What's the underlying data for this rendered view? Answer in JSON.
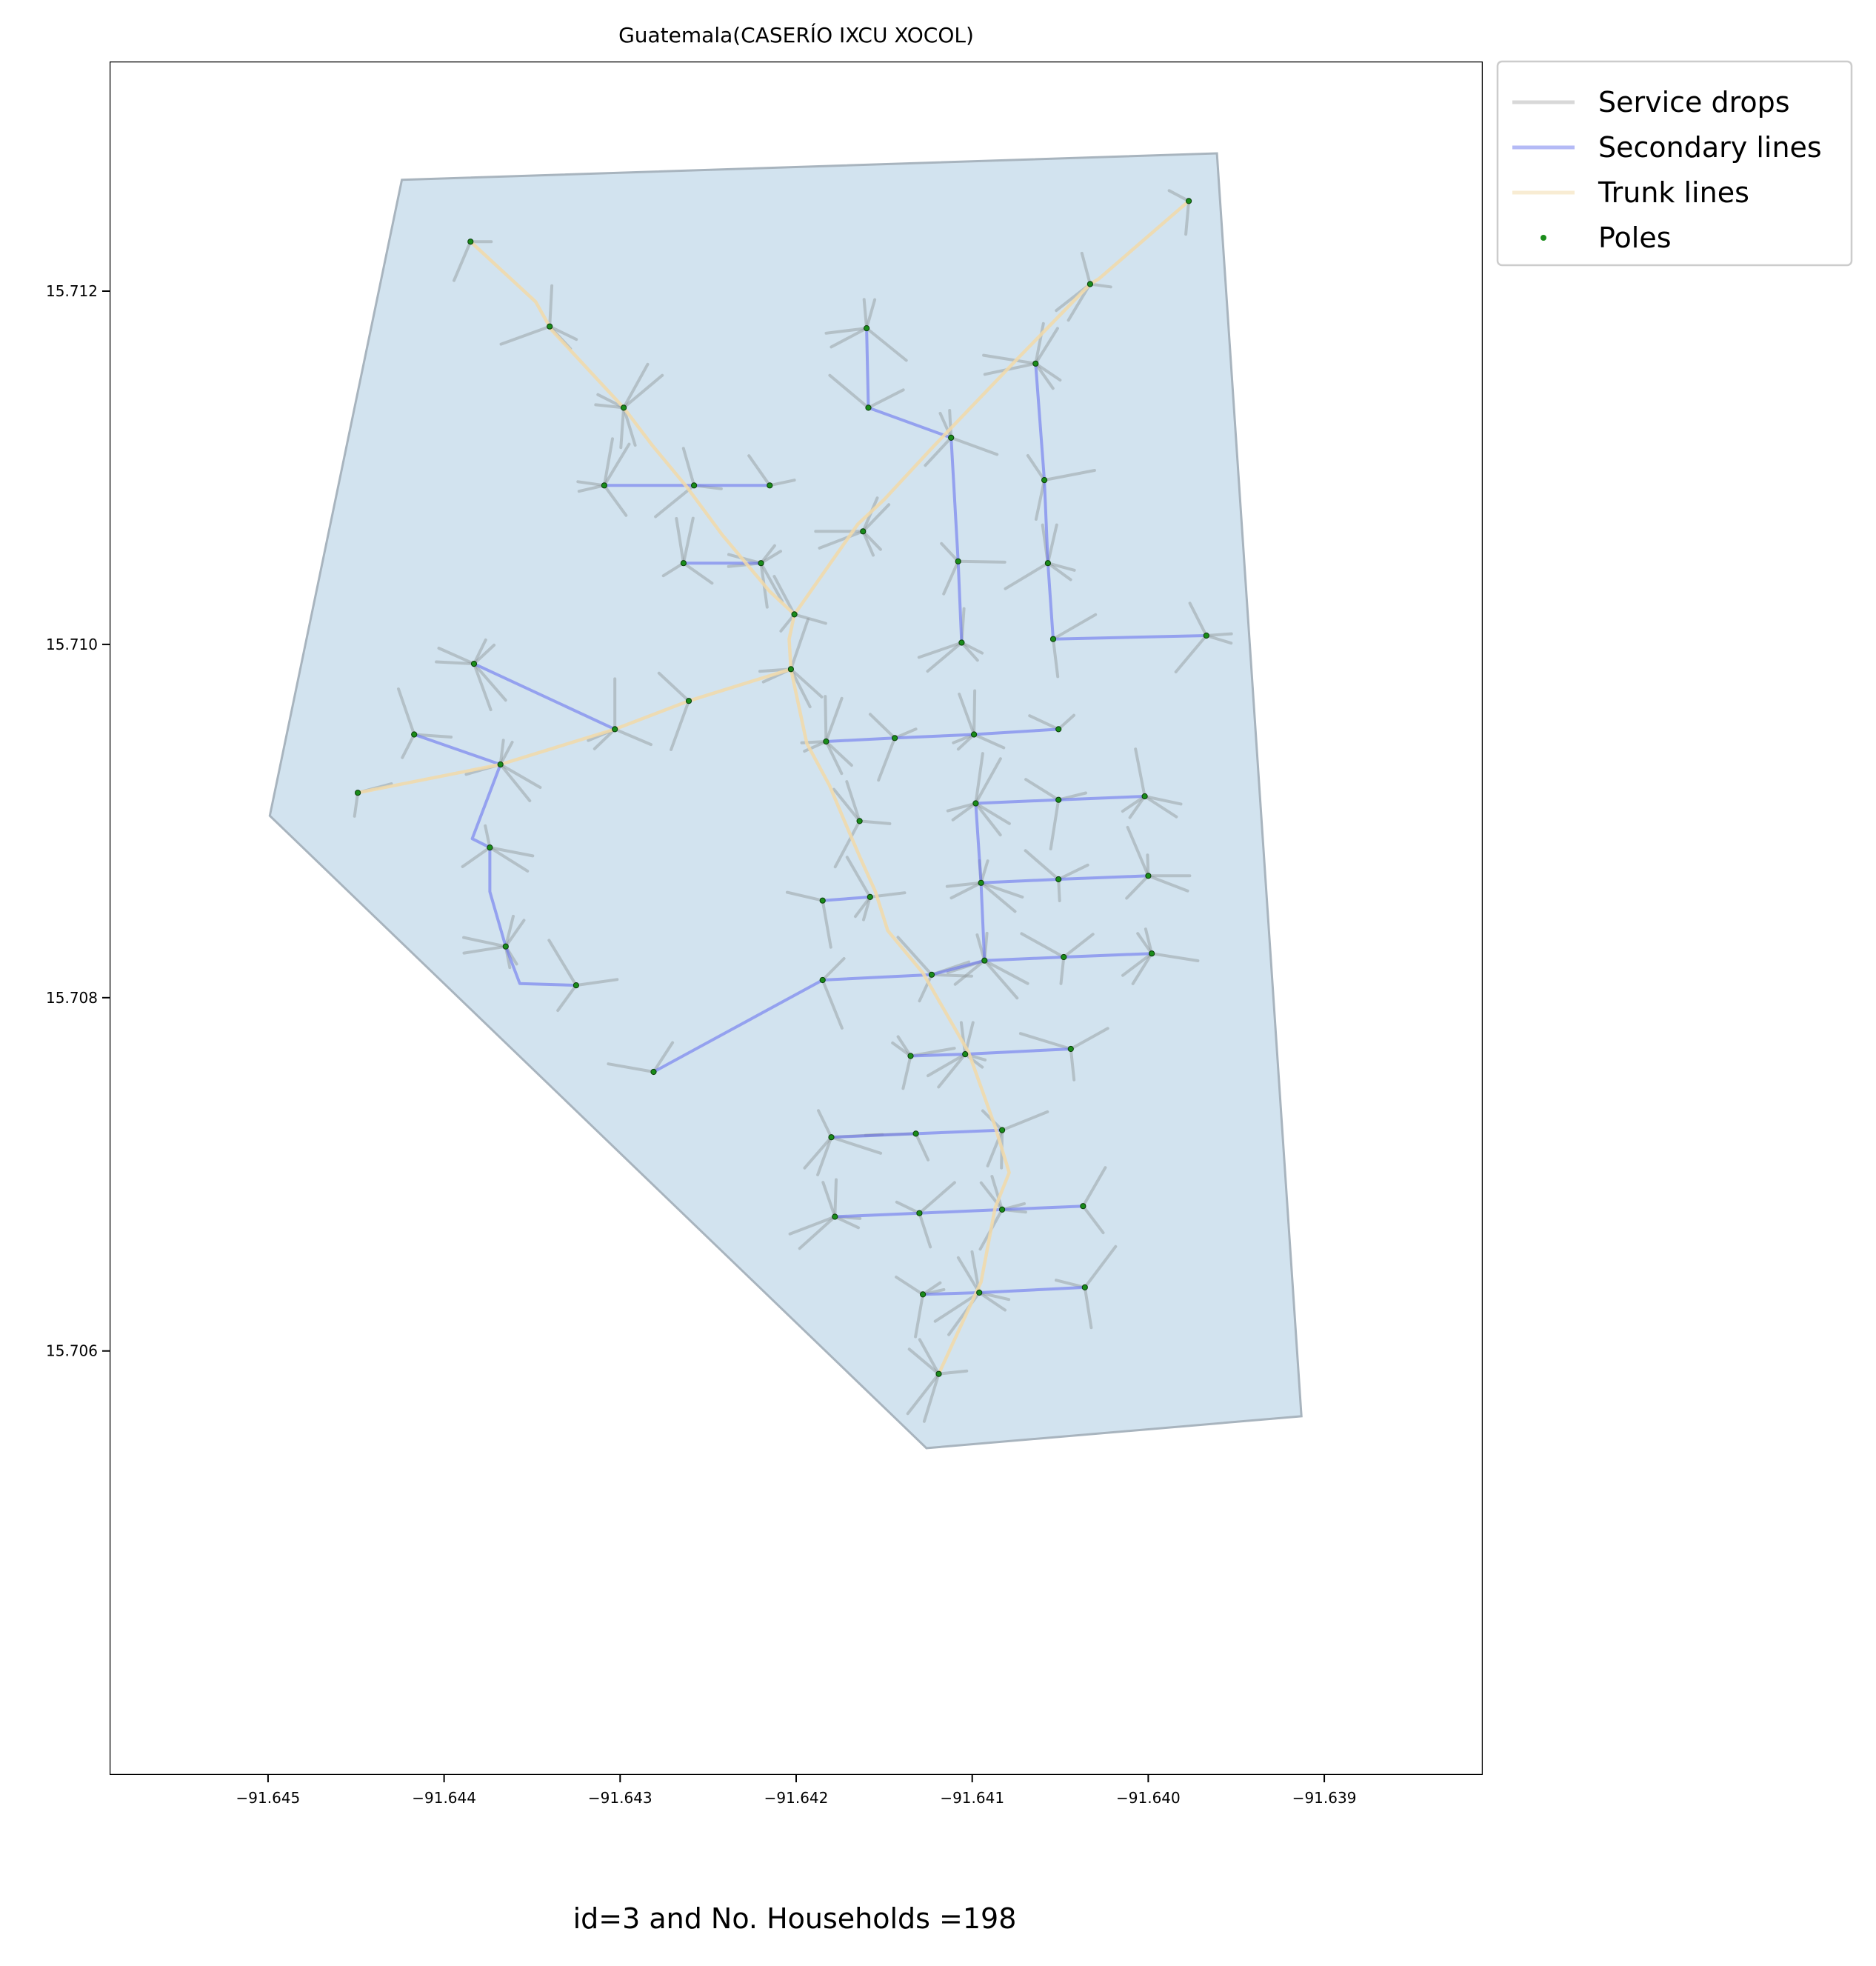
{
  "chart_data": {
    "type": "map",
    "title": "Guatemala(CASERÍO IXCU XOCOL)",
    "caption": "id=3 and No. Households =198",
    "xlim": [
      -91.6459,
      -91.6381
    ],
    "ylim": [
      15.7036,
      15.7133
    ],
    "x_ticks": [
      -91.645,
      -91.644,
      -91.643,
      -91.642,
      -91.641,
      -91.64,
      -91.639
    ],
    "x_tick_labels": [
      "−91.645",
      "−91.644",
      "−91.643",
      "−91.642",
      "−91.641",
      "−91.640",
      "−91.639"
    ],
    "y_ticks": [
      15.706,
      15.708,
      15.71,
      15.712
    ],
    "y_tick_labels": [
      "15.706",
      "15.708",
      "15.710",
      "15.712"
    ],
    "grid": false,
    "legend_position": "outside-top-right",
    "colors": {
      "area_fill": "#d2e3ef",
      "area_edge": "#a8b4be",
      "service_drops": "#c8c8c8",
      "service_drops_drawn": "#8f9497",
      "secondary_lines": "#6a75ee",
      "trunk_lines": "#f2d9a8",
      "poles": "#1a8c1a"
    },
    "legend": [
      {
        "label": "Service drops",
        "kind": "line",
        "color_key": "service_drops"
      },
      {
        "label": "Secondary lines",
        "kind": "line",
        "color_key": "secondary_lines"
      },
      {
        "label": "Trunk lines",
        "kind": "line",
        "color_key": "trunk_lines"
      },
      {
        "label": "Poles",
        "kind": "point",
        "color_key": "poles"
      }
    ],
    "boundary": [
      [
        -91.64424,
        15.71263
      ],
      [
        -91.63961,
        15.71278
      ],
      [
        -91.63913,
        15.70563
      ],
      [
        -91.64126,
        15.70545
      ],
      [
        -91.64499,
        15.70903
      ]
    ],
    "trunk_lines": [
      [
        [
          -91.64385,
          15.71228
        ],
        [
          -91.64348,
          15.71194
        ],
        [
          -91.64339,
          15.71178
        ],
        [
          -91.64325,
          15.71163
        ],
        [
          -91.64298,
          15.71134
        ],
        [
          -91.64282,
          15.71113
        ],
        [
          -91.64262,
          15.71089
        ],
        [
          -91.64242,
          15.71062
        ],
        [
          -91.64215,
          15.7103
        ],
        [
          -91.64201,
          15.71017
        ]
      ],
      [
        [
          -91.63977,
          15.71251
        ],
        [
          -91.64028,
          15.71207
        ],
        [
          -91.64033,
          15.71204
        ],
        [
          -91.64074,
          15.71162
        ],
        [
          -91.64123,
          15.71111
        ],
        [
          -91.6415,
          15.71082
        ],
        [
          -91.64165,
          15.71068
        ],
        [
          -91.64201,
          15.71017
        ]
      ],
      [
        [
          -91.64201,
          15.71017
        ],
        [
          -91.64204,
          15.71003
        ],
        [
          -91.64203,
          15.70986
        ]
      ],
      [
        [
          -91.64261,
          15.70968
        ],
        [
          -91.64203,
          15.70986
        ],
        [
          -91.64194,
          15.70944
        ],
        [
          -91.64181,
          15.7092
        ],
        [
          -91.64173,
          15.70901
        ],
        [
          -91.64164,
          15.7088
        ],
        [
          -91.64155,
          15.7086
        ],
        [
          -91.64148,
          15.70838
        ],
        [
          -91.64128,
          15.70814
        ],
        [
          -91.64102,
          15.70769
        ],
        [
          -91.64087,
          15.70727
        ],
        [
          -91.64079,
          15.70701
        ],
        [
          -91.64087,
          15.70681
        ],
        [
          -91.64095,
          15.70639
        ],
        [
          -91.64119,
          15.70587
        ]
      ],
      [
        [
          -91.64449,
          15.70916
        ],
        [
          -91.64368,
          15.70932
        ],
        [
          -91.64303,
          15.70952
        ],
        [
          -91.64261,
          15.70968
        ]
      ]
    ],
    "secondary_lines": [
      [
        [
          -91.64368,
          15.70932
        ],
        [
          -91.64384,
          15.7089
        ],
        [
          -91.64374,
          15.70885
        ],
        [
          -91.64374,
          15.7086
        ],
        [
          -91.64365,
          15.70829
        ],
        [
          -91.64357,
          15.70808
        ],
        [
          -91.64325,
          15.70807
        ]
      ],
      [
        [
          -91.64368,
          15.70932
        ],
        [
          -91.64417,
          15.70949
        ]
      ],
      [
        [
          -91.64303,
          15.70952
        ],
        [
          -91.64383,
          15.70989
        ]
      ],
      [
        [
          -91.64112,
          15.71117
        ],
        [
          -91.64159,
          15.71134
        ],
        [
          -91.6416,
          15.71179
        ]
      ],
      [
        [
          -91.64112,
          15.71117
        ],
        [
          -91.64108,
          15.71047
        ],
        [
          -91.64106,
          15.71001
        ]
      ],
      [
        [
          -91.64064,
          15.71159
        ],
        [
          -91.64059,
          15.71093
        ],
        [
          -91.64057,
          15.71046
        ],
        [
          -91.64054,
          15.71003
        ],
        [
          -91.63967,
          15.71005
        ]
      ],
      [
        [
          -91.64309,
          15.7109
        ],
        [
          -91.64258,
          15.7109
        ],
        [
          -91.64215,
          15.7109
        ]
      ],
      [
        [
          -91.64264,
          15.71046
        ],
        [
          -91.6422,
          15.71046
        ]
      ],
      [
        [
          -91.64183,
          15.70945
        ],
        [
          -91.64144,
          15.70947
        ],
        [
          -91.64099,
          15.70949
        ],
        [
          -91.64051,
          15.70952
        ]
      ],
      [
        [
          -91.64098,
          15.7091
        ],
        [
          -91.64051,
          15.70912
        ],
        [
          -91.64002,
          15.70914
        ]
      ],
      [
        [
          -91.64098,
          15.7091
        ],
        [
          -91.64095,
          15.70865
        ],
        [
          -91.64093,
          15.70821
        ]
      ],
      [
        [
          -91.64095,
          15.70865
        ],
        [
          -91.64051,
          15.70867
        ],
        [
          -91.64,
          15.70869
        ]
      ],
      [
        [
          -91.64185,
          15.70855
        ],
        [
          -91.64158,
          15.70857
        ]
      ],
      [
        [
          -91.64281,
          15.70758
        ],
        [
          -91.64185,
          15.7081
        ],
        [
          -91.64123,
          15.70813
        ],
        [
          -91.64093,
          15.70821
        ],
        [
          -91.64048,
          15.70823
        ],
        [
          -91.63998,
          15.70825
        ]
      ],
      [
        [
          -91.64135,
          15.70767
        ],
        [
          -91.64104,
          15.70768
        ],
        [
          -91.64044,
          15.70771
        ]
      ],
      [
        [
          -91.6418,
          15.70721
        ],
        [
          -91.64132,
          15.70723
        ],
        [
          -91.64083,
          15.70725
        ]
      ],
      [
        [
          -91.64178,
          15.70676
        ],
        [
          -91.6413,
          15.70678
        ],
        [
          -91.64083,
          15.7068
        ],
        [
          -91.64037,
          15.70682
        ]
      ],
      [
        [
          -91.64128,
          15.70632
        ],
        [
          -91.64096,
          15.70633
        ],
        [
          -91.64036,
          15.70636
        ]
      ]
    ],
    "poles": [
      [
        -91.64385,
        15.71228
      ],
      [
        -91.6434,
        15.7118
      ],
      [
        -91.64298,
        15.71134
      ],
      [
        -91.64258,
        15.7109
      ],
      [
        -91.64309,
        15.7109
      ],
      [
        -91.64215,
        15.7109
      ],
      [
        -91.64264,
        15.71046
      ],
      [
        -91.6422,
        15.71046
      ],
      [
        -91.64201,
        15.71017
      ],
      [
        -91.64203,
        15.70986
      ],
      [
        -91.64261,
        15.70968
      ],
      [
        -91.64303,
        15.70952
      ],
      [
        -91.64383,
        15.70989
      ],
      [
        -91.64417,
        15.70949
      ],
      [
        -91.64368,
        15.70932
      ],
      [
        -91.64449,
        15.70916
      ],
      [
        -91.64374,
        15.70885
      ],
      [
        -91.64365,
        15.70829
      ],
      [
        -91.64325,
        15.70807
      ],
      [
        -91.6416,
        15.71179
      ],
      [
        -91.64159,
        15.71134
      ],
      [
        -91.64112,
        15.71117
      ],
      [
        -91.64162,
        15.71064
      ],
      [
        -91.64108,
        15.71047
      ],
      [
        -91.64106,
        15.71001
      ],
      [
        -91.63977,
        15.71251
      ],
      [
        -91.64033,
        15.71204
      ],
      [
        -91.64064,
        15.71159
      ],
      [
        -91.64059,
        15.71093
      ],
      [
        -91.64057,
        15.71046
      ],
      [
        -91.64054,
        15.71003
      ],
      [
        -91.63967,
        15.71005
      ],
      [
        -91.64183,
        15.70945
      ],
      [
        -91.64144,
        15.70947
      ],
      [
        -91.64099,
        15.70949
      ],
      [
        -91.64051,
        15.70952
      ],
      [
        -91.64164,
        15.709
      ],
      [
        -91.64098,
        15.7091
      ],
      [
        -91.64051,
        15.70912
      ],
      [
        -91.64002,
        15.70914
      ],
      [
        -91.64185,
        15.70855
      ],
      [
        -91.64158,
        15.70857
      ],
      [
        -91.64095,
        15.70865
      ],
      [
        -91.64051,
        15.70867
      ],
      [
        -91.64,
        15.70869
      ],
      [
        -91.64185,
        15.7081
      ],
      [
        -91.64123,
        15.70813
      ],
      [
        -91.64093,
        15.70821
      ],
      [
        -91.64048,
        15.70823
      ],
      [
        -91.63998,
        15.70825
      ],
      [
        -91.64281,
        15.70758
      ],
      [
        -91.64135,
        15.70767
      ],
      [
        -91.64104,
        15.70768
      ],
      [
        -91.64044,
        15.70771
      ],
      [
        -91.6418,
        15.70721
      ],
      [
        -91.64132,
        15.70723
      ],
      [
        -91.64083,
        15.70725
      ],
      [
        -91.64178,
        15.70676
      ],
      [
        -91.6413,
        15.70678
      ],
      [
        -91.64083,
        15.7068
      ],
      [
        -91.64037,
        15.70682
      ],
      [
        -91.64128,
        15.70632
      ],
      [
        -91.64096,
        15.70633
      ],
      [
        -91.64036,
        15.70636
      ],
      [
        -91.64119,
        15.70587
      ]
    ]
  }
}
